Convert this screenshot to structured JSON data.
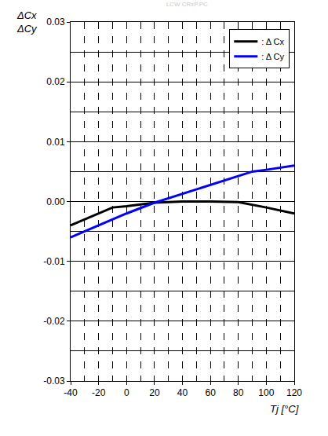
{
  "chart_data": {
    "type": "line",
    "title": "LCW CRxP.PC",
    "ylabel": "ΔCx\nΔCy",
    "xlabel": "Tj [°C]",
    "x": [
      -40,
      -20,
      -10,
      0,
      20,
      40,
      60,
      80,
      90,
      100,
      120
    ],
    "series": [
      {
        "name": ": Δ Cx",
        "color": "#000000",
        "values": [
          -0.004,
          -0.002,
          -0.001,
          -0.0008,
          -0.0002,
          0,
          0,
          -0.0001,
          -0.0005,
          -0.001,
          -0.002
        ]
      },
      {
        "name": ": Δ Cy",
        "color": "#0000ff",
        "values": [
          -0.006,
          -0.004,
          -0.003,
          -0.002,
          -0.0002,
          0.0013,
          0.0027,
          0.0043,
          0.005,
          0.0053,
          0.006
        ]
      }
    ],
    "xlim": [
      -40,
      120
    ],
    "xticks": [
      -40,
      -20,
      0,
      20,
      40,
      60,
      80,
      100,
      120
    ],
    "ylim": [
      -0.03,
      0.03
    ],
    "yticks": [
      -0.03,
      -0.02,
      -0.01,
      {
        "value": 0,
        "label": "0.00"
      },
      0.01,
      0.02,
      0.03
    ],
    "grid": true,
    "legend": "top right"
  }
}
